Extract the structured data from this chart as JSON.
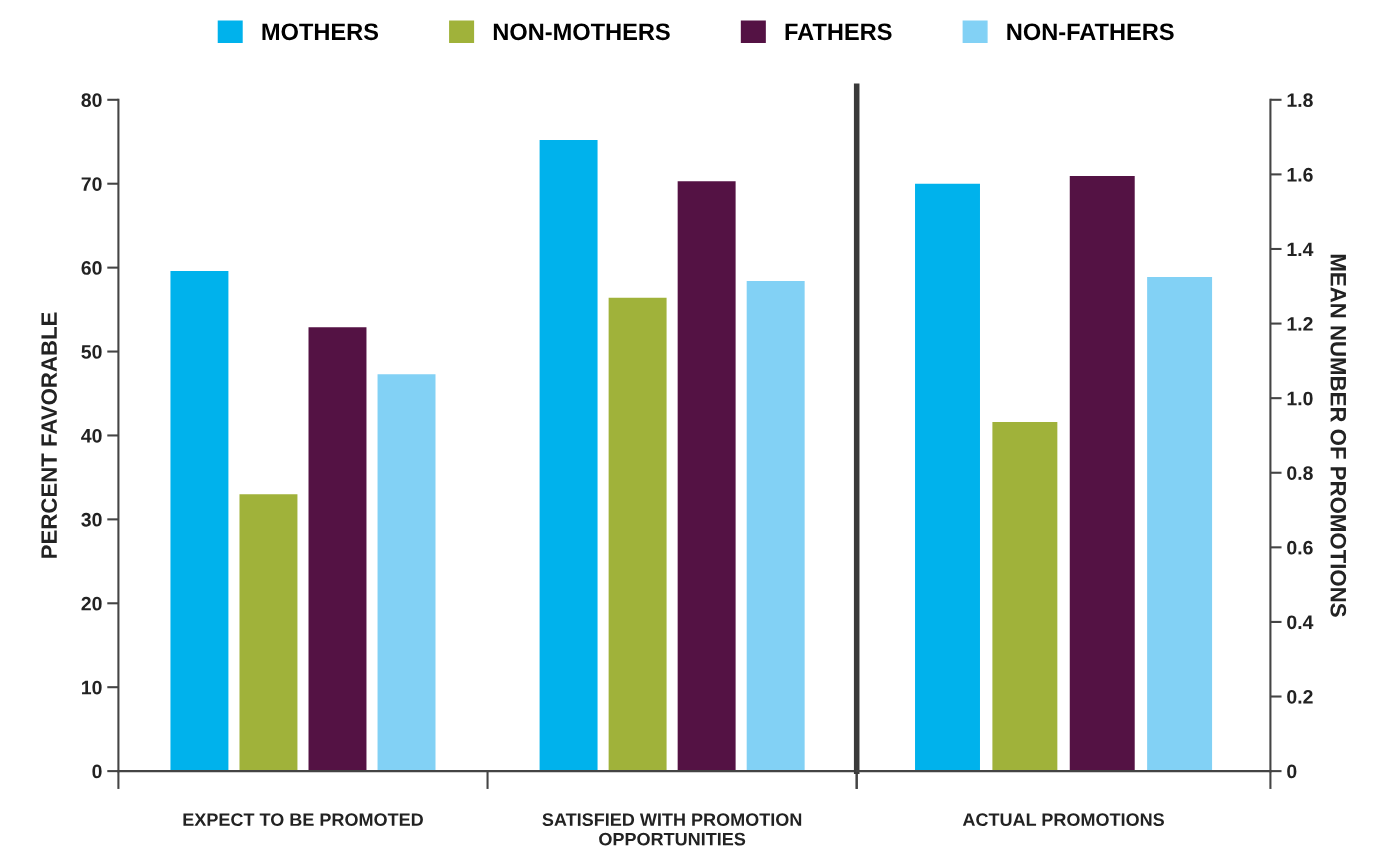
{
  "chart_data": [
    {
      "type": "bar",
      "categories": [
        "EXPECT TO BE PROMOTED",
        "SATISFIED WITH PROMOTION\nOPPORTUNITIES"
      ],
      "ylabel": "PERCENT FAVORABLE",
      "ylim": [
        0,
        80
      ],
      "yticks": [
        0,
        10,
        20,
        30,
        40,
        50,
        60,
        70,
        80
      ],
      "legend": "top",
      "grid": false,
      "series": [
        {
          "name": "MOTHERS",
          "color": "#00b2ec",
          "values": [
            59.6,
            75.2
          ]
        },
        {
          "name": "NON-MOTHERS",
          "color": "#a0b23a",
          "values": [
            33.0,
            56.4
          ]
        },
        {
          "name": "FATHERS",
          "color": "#541244",
          "values": [
            52.9,
            70.3
          ]
        },
        {
          "name": "NON-FATHERS",
          "color": "#82d1f5",
          "values": [
            47.3,
            58.4
          ]
        }
      ]
    },
    {
      "type": "bar",
      "categories": [
        "ACTUAL PROMOTIONS"
      ],
      "ylabel": "MEAN NUMBER OF PROMOTIONS",
      "ylim": [
        0,
        1.8
      ],
      "yticks": [
        {
          "value": 0,
          "label": "0"
        },
        0.2,
        0.4,
        0.6,
        0.8,
        {
          "value": 1.0,
          "label": "1.0"
        },
        1.2,
        1.4,
        1.6,
        1.8
      ],
      "grid": false,
      "series": [
        {
          "color": "#00b2ec",
          "values": [
            1.575
          ]
        },
        {
          "color": "#a0b23a",
          "values": [
            0.936
          ]
        },
        {
          "color": "#541244",
          "values": [
            1.596
          ]
        },
        {
          "color": "#82d1f5",
          "values": [
            1.325
          ]
        }
      ]
    }
  ]
}
